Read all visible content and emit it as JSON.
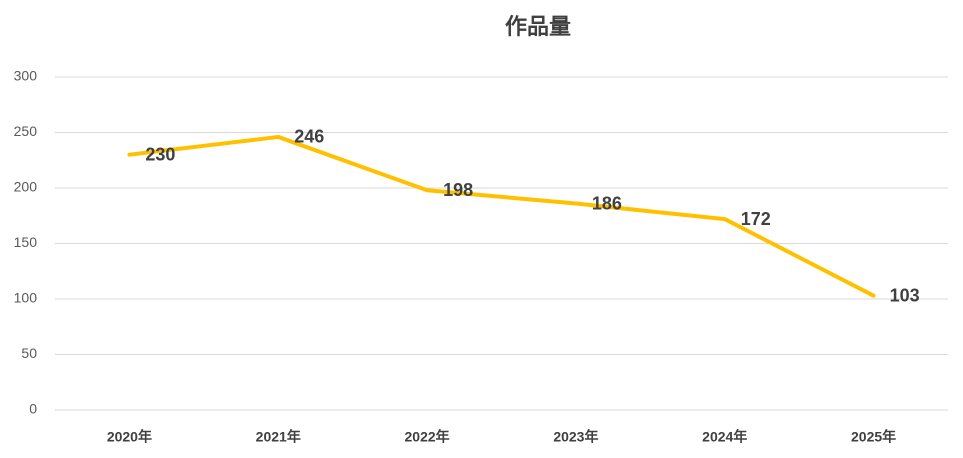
{
  "chart_data": {
    "type": "line",
    "title": "作品量",
    "categories": [
      "2020年",
      "2021年",
      "2022年",
      "2023年",
      "2024年",
      "2025年"
    ],
    "values": [
      230,
      246,
      198,
      186,
      172,
      103
    ],
    "color": "#ffc000",
    "ylim": [
      0,
      300
    ],
    "yticks": [
      0,
      50,
      100,
      150,
      200,
      250,
      300
    ],
    "grid": true
  }
}
